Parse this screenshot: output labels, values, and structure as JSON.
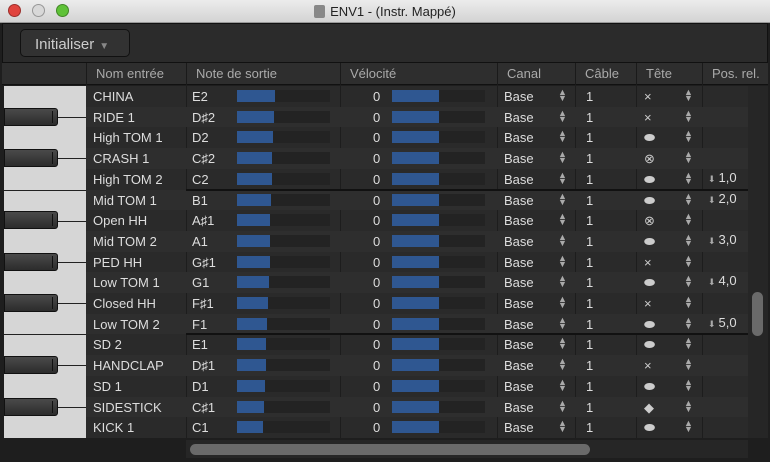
{
  "window": {
    "title": "ENV1 - (Instr. Mappé)"
  },
  "toolbar": {
    "init_label": "Initialiser"
  },
  "columns": [
    "Nom entrée",
    "Note de sortie",
    "Vélocité",
    "Canal",
    "Câble",
    "Tête",
    "Pos. rel."
  ],
  "colors": {
    "bar": "#2f5791",
    "background": "#2a2a2a"
  },
  "rows": [
    {
      "name": "CHINA",
      "note": "E2",
      "note_fraction": 0.41,
      "velocity": "0",
      "velocity_fraction": 0.5,
      "channel": "Base",
      "cable": "1",
      "head": "×",
      "head_icon": "x-head-icon",
      "pos": ""
    },
    {
      "name": "RIDE 1",
      "note": "D♯2",
      "note_fraction": 0.4,
      "velocity": "0",
      "velocity_fraction": 0.5,
      "channel": "Base",
      "cable": "1",
      "head": "×",
      "head_icon": "x-head-icon",
      "pos": ""
    },
    {
      "name": "High TOM 1",
      "note": "D2",
      "note_fraction": 0.39,
      "velocity": "0",
      "velocity_fraction": 0.5,
      "channel": "Base",
      "cable": "1",
      "head": "⬬",
      "head_icon": "normal-head-icon",
      "pos": ""
    },
    {
      "name": "CRASH 1",
      "note": "C♯2",
      "note_fraction": 0.38,
      "velocity": "0",
      "velocity_fraction": 0.5,
      "channel": "Base",
      "cable": "1",
      "head": "⊗",
      "head_icon": "circle-x-head-icon",
      "pos": ""
    },
    {
      "name": "High TOM 2",
      "note": "C2",
      "note_fraction": 0.38,
      "velocity": "0",
      "velocity_fraction": 0.5,
      "channel": "Base",
      "cable": "1",
      "head": "⬬",
      "head_icon": "normal-head-icon",
      "pos": "1,0"
    },
    {
      "name": "Mid TOM 1",
      "note": "B1",
      "note_fraction": 0.37,
      "velocity": "0",
      "velocity_fraction": 0.5,
      "channel": "Base",
      "cable": "1",
      "head": "⬬",
      "head_icon": "normal-head-icon",
      "pos": "2,0"
    },
    {
      "name": "Open HH",
      "note": "A♯1",
      "note_fraction": 0.36,
      "velocity": "0",
      "velocity_fraction": 0.5,
      "channel": "Base",
      "cable": "1",
      "head": "⊗",
      "head_icon": "circle-x-head-icon",
      "pos": ""
    },
    {
      "name": "Mid TOM 2",
      "note": "A1",
      "note_fraction": 0.35,
      "velocity": "0",
      "velocity_fraction": 0.5,
      "channel": "Base",
      "cable": "1",
      "head": "⬬",
      "head_icon": "normal-head-icon",
      "pos": "3,0"
    },
    {
      "name": "PED HH",
      "note": "G♯1",
      "note_fraction": 0.35,
      "velocity": "0",
      "velocity_fraction": 0.5,
      "channel": "Base",
      "cable": "1",
      "head": "×",
      "head_icon": "x-head-icon",
      "pos": ""
    },
    {
      "name": "Low TOM 1",
      "note": "G1",
      "note_fraction": 0.34,
      "velocity": "0",
      "velocity_fraction": 0.5,
      "channel": "Base",
      "cable": "1",
      "head": "⬬",
      "head_icon": "normal-head-icon",
      "pos": "4,0"
    },
    {
      "name": "Closed HH",
      "note": "F♯1",
      "note_fraction": 0.33,
      "velocity": "0",
      "velocity_fraction": 0.5,
      "channel": "Base",
      "cable": "1",
      "head": "×",
      "head_icon": "x-head-icon",
      "pos": ""
    },
    {
      "name": "Low TOM 2",
      "note": "F1",
      "note_fraction": 0.32,
      "velocity": "0",
      "velocity_fraction": 0.5,
      "channel": "Base",
      "cable": "1",
      "head": "⬬",
      "head_icon": "normal-head-icon",
      "pos": "5,0"
    },
    {
      "name": "SD 2",
      "note": "E1",
      "note_fraction": 0.31,
      "velocity": "0",
      "velocity_fraction": 0.5,
      "channel": "Base",
      "cable": "1",
      "head": "⬬",
      "head_icon": "normal-head-icon",
      "pos": ""
    },
    {
      "name": "HANDCLAP",
      "note": "D♯1",
      "note_fraction": 0.31,
      "velocity": "0",
      "velocity_fraction": 0.5,
      "channel": "Base",
      "cable": "1",
      "head": "×",
      "head_icon": "x-head-icon",
      "pos": ""
    },
    {
      "name": "SD 1",
      "note": "D1",
      "note_fraction": 0.3,
      "velocity": "0",
      "velocity_fraction": 0.5,
      "channel": "Base",
      "cable": "1",
      "head": "⬬",
      "head_icon": "normal-head-icon",
      "pos": ""
    },
    {
      "name": "SIDESTICK",
      "note": "C♯1",
      "note_fraction": 0.29,
      "velocity": "0",
      "velocity_fraction": 0.5,
      "channel": "Base",
      "cable": "1",
      "head": "◆",
      "head_icon": "diamond-head-icon",
      "pos": ""
    },
    {
      "name": "KICK 1",
      "note": "C1",
      "note_fraction": 0.28,
      "velocity": "0",
      "velocity_fraction": 0.5,
      "channel": "Base",
      "cable": "1",
      "head": "⬬",
      "head_icon": "normal-head-icon",
      "pos": ""
    }
  ]
}
